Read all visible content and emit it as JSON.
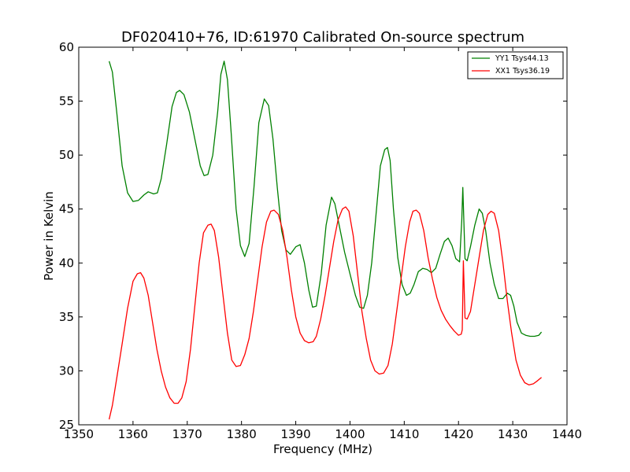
{
  "chart_data": {
    "type": "line",
    "title": "DF020410+76, ID:61970 Calibrated On-source spectrum",
    "xlabel": "Frequency (MHz)",
    "ylabel": "Power in Kelvin",
    "xlim": [
      1350,
      1440
    ],
    "ylim": [
      25,
      60
    ],
    "xticks": [
      1350,
      1360,
      1370,
      1380,
      1390,
      1400,
      1410,
      1420,
      1430,
      1440
    ],
    "yticks": [
      25,
      30,
      35,
      40,
      45,
      50,
      55,
      60
    ],
    "grid": false,
    "legend_position": "top-right",
    "series": [
      {
        "name": "YY1 Tsys44.13",
        "color": "#008000",
        "x": [
          1355.6,
          1356.2,
          1357.0,
          1358.0,
          1359.0,
          1360.0,
          1361.0,
          1362.0,
          1362.8,
          1363.8,
          1364.5,
          1365.2,
          1366.2,
          1367.2,
          1368.0,
          1368.6,
          1369.4,
          1370.4,
          1371.4,
          1372.4,
          1373.1,
          1373.8,
          1374.7,
          1375.6,
          1376.2,
          1376.8,
          1377.4,
          1378.1,
          1379.0,
          1379.8,
          1380.6,
          1381.4,
          1382.3,
          1383.2,
          1384.2,
          1385.0,
          1385.8,
          1386.6,
          1387.4,
          1388.2,
          1389.0,
          1390.0,
          1390.8,
          1391.6,
          1392.4,
          1393.1,
          1393.8,
          1394.7,
          1395.6,
          1396.6,
          1397.2,
          1398.0,
          1399.0,
          1400.0,
          1401.0,
          1401.8,
          1402.5,
          1403.2,
          1404.0,
          1404.8,
          1405.6,
          1406.4,
          1406.9,
          1407.4,
          1408.0,
          1408.8,
          1409.6,
          1410.4,
          1411.1,
          1411.8,
          1412.6,
          1413.4,
          1414.2,
          1415.0,
          1415.8,
          1416.6,
          1417.4,
          1418.1,
          1418.8,
          1419.5,
          1420.2,
          1420.6,
          1420.8,
          1421.2,
          1421.6,
          1422.2,
          1423.0,
          1423.8,
          1424.4,
          1425.0,
          1425.8,
          1426.6,
          1427.4,
          1428.2,
          1429.0,
          1429.6,
          1430.2,
          1430.8,
          1431.6,
          1432.4,
          1433.2,
          1434.0,
          1434.8,
          1435.3
        ],
        "values": [
          58.7,
          57.7,
          54.0,
          49.0,
          46.5,
          45.7,
          45.8,
          46.3,
          46.6,
          46.4,
          46.5,
          47.8,
          51.0,
          54.5,
          55.8,
          56.0,
          55.6,
          54.0,
          51.5,
          49.0,
          48.1,
          48.2,
          50.0,
          54.0,
          57.5,
          58.7,
          57.0,
          52.0,
          45.0,
          41.6,
          40.6,
          41.8,
          47.0,
          53.0,
          55.2,
          54.6,
          51.5,
          47.0,
          43.0,
          41.2,
          40.8,
          41.5,
          41.7,
          40.0,
          37.5,
          35.9,
          36.0,
          39.0,
          43.5,
          46.1,
          45.5,
          43.5,
          41.0,
          39.0,
          37.0,
          35.9,
          35.8,
          37.0,
          40.0,
          44.5,
          49.0,
          50.5,
          50.7,
          49.5,
          45.0,
          40.5,
          38.0,
          37.0,
          37.2,
          38.0,
          39.2,
          39.5,
          39.4,
          39.1,
          39.5,
          40.8,
          42.0,
          42.3,
          41.6,
          40.4,
          40.1,
          44.0,
          47.0,
          40.4,
          40.2,
          41.5,
          43.5,
          45.0,
          44.6,
          43.0,
          40.0,
          38.0,
          36.7,
          36.7,
          37.2,
          37.0,
          36.0,
          34.5,
          33.5,
          33.3,
          33.2,
          33.2,
          33.3,
          33.6
        ]
      },
      {
        "name": "XX1 Tsys36.19",
        "color": "#ff0000",
        "x": [
          1355.6,
          1356.2,
          1357.0,
          1358.0,
          1359.0,
          1360.0,
          1360.8,
          1361.4,
          1362.0,
          1362.8,
          1363.6,
          1364.4,
          1365.2,
          1366.0,
          1366.8,
          1367.6,
          1368.3,
          1369.0,
          1369.8,
          1370.6,
          1371.4,
          1372.2,
          1373.0,
          1373.8,
          1374.4,
          1375.0,
          1375.8,
          1376.6,
          1377.4,
          1378.2,
          1379.0,
          1379.8,
          1380.6,
          1381.4,
          1382.2,
          1383.0,
          1383.8,
          1384.6,
          1385.4,
          1386.0,
          1386.8,
          1387.6,
          1388.4,
          1389.2,
          1390.0,
          1390.8,
          1391.6,
          1392.4,
          1393.2,
          1393.8,
          1394.6,
          1395.4,
          1396.2,
          1397.0,
          1397.8,
          1398.6,
          1399.2,
          1399.8,
          1400.6,
          1401.4,
          1402.2,
          1403.0,
          1403.8,
          1404.6,
          1405.4,
          1406.2,
          1407.0,
          1407.8,
          1408.6,
          1409.4,
          1410.2,
          1411.0,
          1411.6,
          1412.2,
          1412.8,
          1413.6,
          1414.4,
          1415.2,
          1416.0,
          1416.8,
          1417.6,
          1418.4,
          1419.2,
          1420.0,
          1420.5,
          1420.7,
          1420.9,
          1421.2,
          1421.6,
          1422.2,
          1423.0,
          1423.8,
          1424.6,
          1425.4,
          1426.0,
          1426.6,
          1427.4,
          1428.2,
          1429.0,
          1429.8,
          1430.6,
          1431.4,
          1432.2,
          1433.0,
          1433.8,
          1434.6,
          1435.3
        ],
        "values": [
          25.5,
          26.8,
          29.3,
          32.5,
          35.8,
          38.3,
          39.0,
          39.1,
          38.6,
          37.0,
          34.5,
          32.0,
          30.0,
          28.5,
          27.5,
          27.0,
          27.0,
          27.5,
          29.0,
          32.0,
          36.0,
          40.0,
          42.8,
          43.5,
          43.6,
          43.0,
          40.5,
          37.0,
          33.5,
          31.0,
          30.4,
          30.5,
          31.5,
          33.0,
          35.5,
          38.5,
          41.5,
          43.8,
          44.8,
          44.9,
          44.5,
          43.0,
          40.5,
          37.5,
          35.0,
          33.5,
          32.8,
          32.6,
          32.7,
          33.2,
          34.8,
          37.0,
          39.5,
          42.0,
          44.0,
          45.0,
          45.2,
          44.8,
          42.5,
          39.0,
          35.5,
          33.0,
          31.0,
          30.0,
          29.7,
          29.8,
          30.5,
          32.5,
          35.5,
          38.5,
          41.5,
          43.8,
          44.8,
          44.9,
          44.6,
          43.0,
          40.5,
          38.5,
          36.8,
          35.6,
          34.8,
          34.2,
          33.7,
          33.3,
          33.4,
          33.8,
          40.2,
          34.9,
          34.8,
          35.5,
          38.0,
          40.5,
          43.0,
          44.5,
          44.8,
          44.6,
          43.0,
          40.0,
          36.5,
          33.5,
          31.0,
          29.6,
          28.9,
          28.7,
          28.8,
          29.1,
          29.4
        ]
      }
    ]
  }
}
